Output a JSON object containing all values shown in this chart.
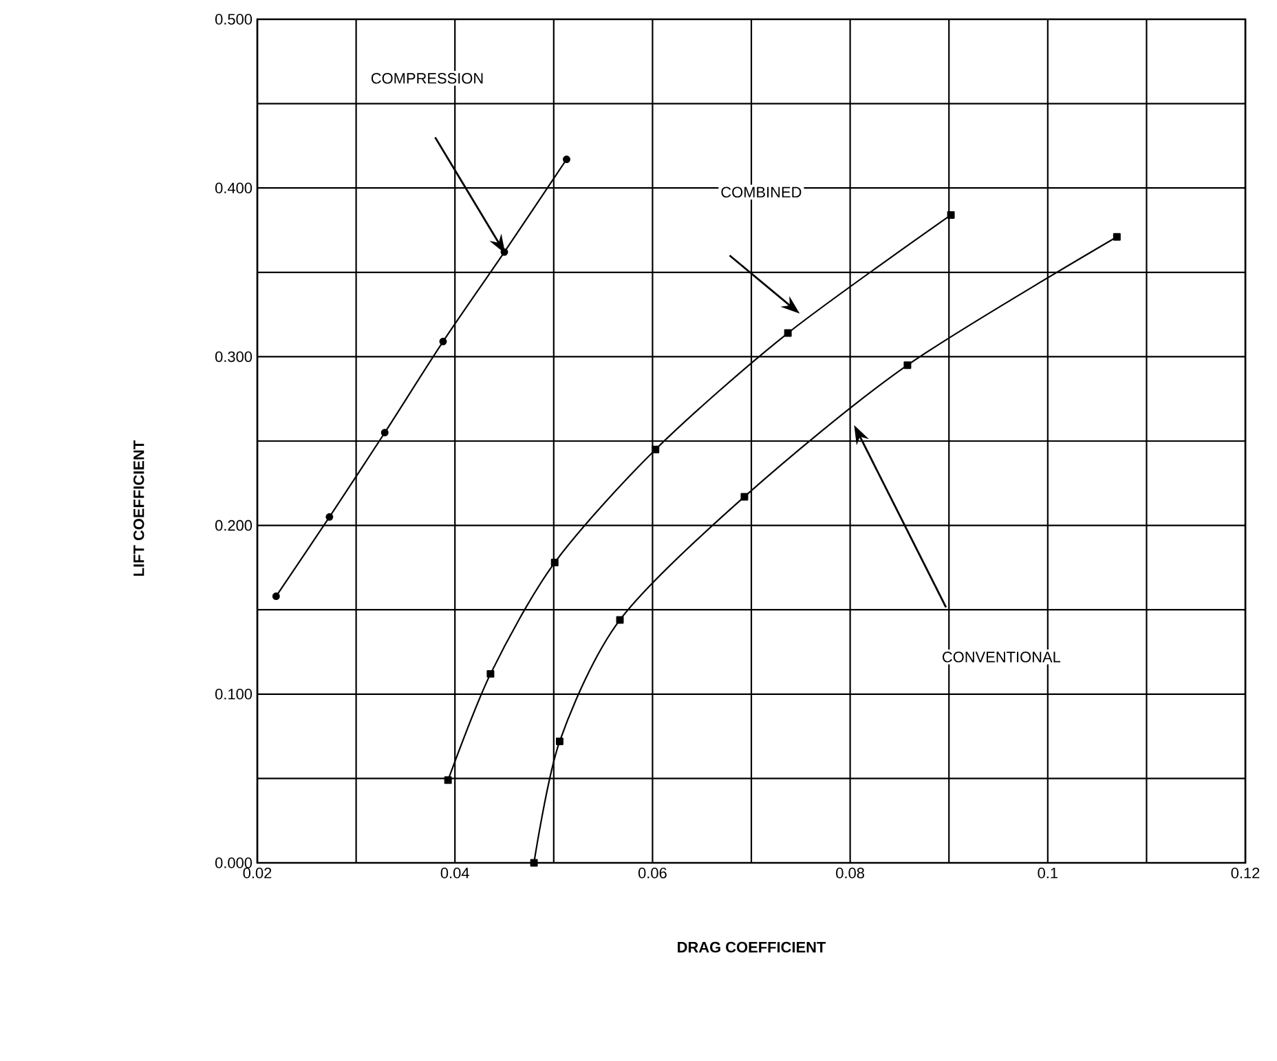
{
  "chart_data": {
    "type": "line",
    "xlabel": "DRAG COEFFICIENT",
    "ylabel": "LIFT COEFFICIENT",
    "xlim": [
      0.02,
      0.12
    ],
    "ylim": [
      0,
      0.5
    ],
    "xticks": [
      0.02,
      {
        "value": 0.03,
        "label": null
      },
      0.04,
      {
        "value": 0.05,
        "label": null
      },
      0.06,
      {
        "value": 0.07,
        "label": null
      },
      0.08,
      {
        "value": 0.09,
        "label": null
      },
      0.1,
      {
        "value": 0.11,
        "label": null
      },
      0.12
    ],
    "yticks": [
      {
        "value": 0,
        "label": "0.000"
      },
      {
        "value": 0.05,
        "label": null
      },
      {
        "value": 0.1,
        "label": "0.100"
      },
      {
        "value": 0.15,
        "label": null
      },
      {
        "value": 0.2,
        "label": "0.200"
      },
      {
        "value": 0.25,
        "label": null
      },
      {
        "value": 0.3,
        "label": "0.300"
      },
      {
        "value": 0.35,
        "label": null
      },
      {
        "value": 0.4,
        "label": "0.400"
      },
      {
        "value": 0.45,
        "label": null
      },
      {
        "value": 0.5,
        "label": "0.500"
      }
    ],
    "grid": true,
    "line_style": "solid",
    "series": [
      {
        "color": "#000000",
        "marker": "circle",
        "x": [
          0.0219,
          0.0273,
          0.0329,
          0.0388,
          0.045,
          0.0513
        ],
        "values": [
          0.158,
          0.205,
          0.255,
          0.309,
          0.362,
          0.417
        ]
      },
      {
        "color": "#000000",
        "marker": "square",
        "x": [
          0.0393,
          0.0436,
          0.0501,
          0.0603,
          0.0737,
          0.0902
        ],
        "values": [
          0.049,
          0.112,
          0.178,
          0.245,
          0.314,
          0.384
        ]
      },
      {
        "color": "#000000",
        "marker": "square",
        "x": [
          0.048,
          0.0506,
          0.0567,
          0.0693,
          0.0858,
          0.107
        ],
        "values": [
          0.0,
          0.072,
          0.144,
          0.217,
          0.295,
          0.371
        ]
      }
    ],
    "annotations": [
      "COMPRESSION",
      "COMBINED",
      "CONVENTIONAL"
    ]
  }
}
